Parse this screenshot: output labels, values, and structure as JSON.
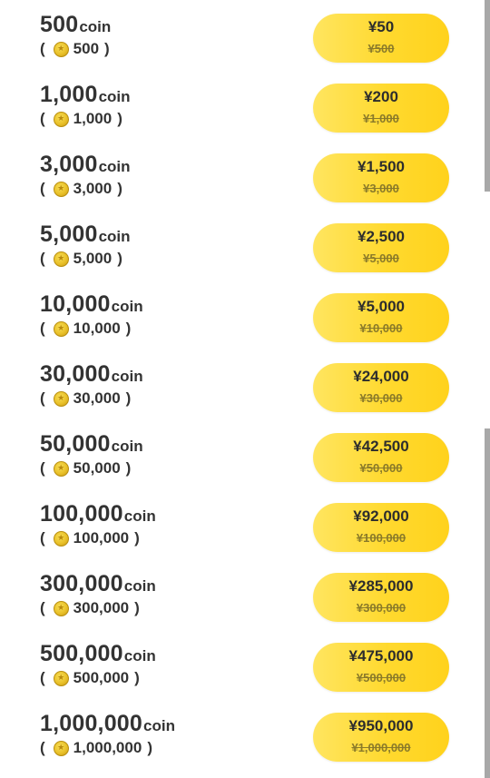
{
  "coin_unit": "coin",
  "coin_icon": "coin-icon",
  "packages": [
    {
      "amount": "500",
      "sub": "500",
      "price": "¥50",
      "original_price": "¥500"
    },
    {
      "amount": "1,000",
      "sub": "1,000",
      "price": "¥200",
      "original_price": "¥1,000"
    },
    {
      "amount": "3,000",
      "sub": "3,000",
      "price": "¥1,500",
      "original_price": "¥3,000"
    },
    {
      "amount": "5,000",
      "sub": "5,000",
      "price": "¥2,500",
      "original_price": "¥5,000"
    },
    {
      "amount": "10,000",
      "sub": "10,000",
      "price": "¥5,000",
      "original_price": "¥10,000"
    },
    {
      "amount": "30,000",
      "sub": "30,000",
      "price": "¥24,000",
      "original_price": "¥30,000"
    },
    {
      "amount": "50,000",
      "sub": "50,000",
      "price": "¥42,500",
      "original_price": "¥50,000"
    },
    {
      "amount": "100,000",
      "sub": "100,000",
      "price": "¥92,000",
      "original_price": "¥100,000"
    },
    {
      "amount": "300,000",
      "sub": "300,000",
      "price": "¥285,000",
      "original_price": "¥300,000"
    },
    {
      "amount": "500,000",
      "sub": "500,000",
      "price": "¥475,000",
      "original_price": "¥500,000"
    },
    {
      "amount": "1,000,000",
      "sub": "1,000,000",
      "price": "¥950,000",
      "original_price": "¥1,000,000"
    }
  ],
  "colors": {
    "button_yellow": "#ffd92e",
    "text_dark": "#333333",
    "coin_gold": "#e9c12a",
    "scrollbar": "#a8a8a8"
  }
}
